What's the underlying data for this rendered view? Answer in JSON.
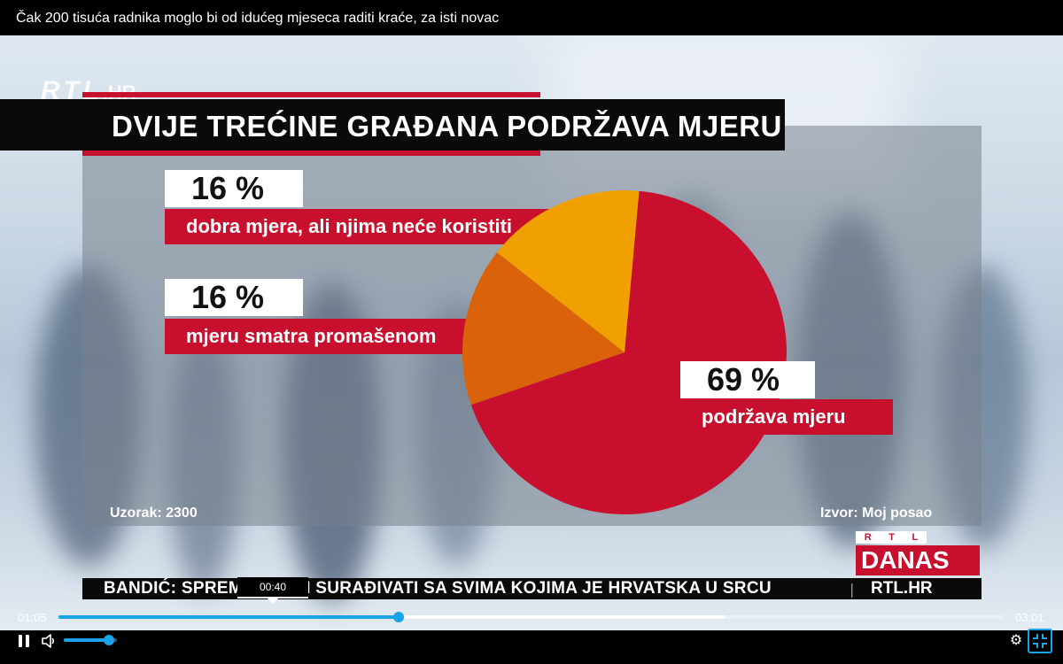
{
  "window": {
    "title": "Čak 200 tisuća radnika moglo bi od idućeg mjeseca raditi kraće, za isti novac"
  },
  "broadcast": {
    "logo_top": {
      "brand": "RTL",
      "suffix": ".HR"
    },
    "headline": "DVIJE TREĆINE GRAĐANA PODRŽAVA MJERU",
    "sample_label": "Uzorak: 2300",
    "source_label": "Izvor:  Moj posao",
    "show_logo": {
      "brand_letters": [
        "R",
        "T",
        "L"
      ],
      "name": "DANAS"
    },
    "ticker": {
      "text": "BANDIĆ: SPREMAN SAM SURAĐIVATI SA SVIMA KOJIMA JE HRVATSKA U SRCU",
      "separator": "|",
      "site": "RTL.HR"
    },
    "colors": {
      "red": "#c8102e",
      "dark_orange": "#d9620a",
      "yellow": "#f0a000"
    }
  },
  "chart_data": {
    "type": "pie",
    "title": "DVIJE TREĆINE GRAĐANA PODRŽAVA MJERU",
    "slices": [
      {
        "label": "podržava mjeru",
        "value": 69,
        "value_label": "69 %",
        "color": "#c8102e"
      },
      {
        "label": "mjeru smatra promašenom",
        "value": 16,
        "value_label": "16 %",
        "color": "#d9620a"
      },
      {
        "label": "dobra mjera, ali njima neće koristiti",
        "value": 16,
        "value_label": "16 %",
        "color": "#f0a000"
      }
    ]
  },
  "player": {
    "current_time": "01:05",
    "total_time": "03:01",
    "hover_time": "00:40",
    "progress_fraction": 0.36,
    "buffered_fraction": 0.705,
    "volume_fraction": 0.85,
    "accent_color": "#1aa3e8",
    "icons": {
      "play_pause": "pause-icon",
      "volume": "volume-icon",
      "settings": "gear-icon",
      "fullscreen": "fullscreen-exit-icon"
    }
  }
}
